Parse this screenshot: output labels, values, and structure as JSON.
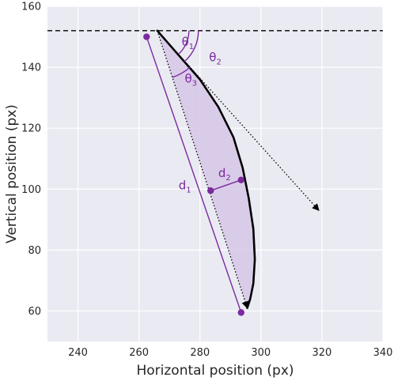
{
  "chart_data": {
    "type": "line",
    "xlabel": "Horizontal position (px)",
    "ylabel": "Vertical position (px)",
    "xlim": [
      230,
      340
    ],
    "ylim": [
      50,
      160
    ],
    "xticks": [
      240,
      260,
      280,
      300,
      320,
      340
    ],
    "yticks": [
      60,
      80,
      100,
      120,
      140,
      160
    ],
    "grid": true,
    "colors": {
      "background": "#eaeaf2",
      "grid": "#ffffff",
      "accent": "#7b2aa0",
      "trajectory": "#000000",
      "fill": "#d6c7e6"
    },
    "series": [
      {
        "style": "solid-black",
        "x": [
          266,
          273,
          280,
          286,
          291,
          294,
          296,
          297.5,
          298,
          297.5,
          296.5,
          295.5
        ],
        "y": [
          152,
          144,
          136,
          127,
          117,
          107,
          97,
          87,
          77,
          69,
          64,
          61
        ]
      },
      {
        "style": "dashed-horizontal",
        "x": [
          230,
          340
        ],
        "y": [
          152,
          152
        ]
      },
      {
        "style": "dotted-arrow",
        "x": [
          266,
          319
        ],
        "y": [
          152,
          93
        ]
      },
      {
        "style": "dotted-arrow",
        "x": [
          266,
          295.5
        ],
        "y": [
          152,
          61
        ]
      }
    ],
    "markers": [
      {
        "x": 262.5,
        "y": 150
      },
      {
        "x": 293.5,
        "y": 59.5
      },
      {
        "x": 283.5,
        "y": 99.5
      },
      {
        "x": 293.5,
        "y": 103
      }
    ],
    "annotations": [
      {
        "base": "θ",
        "sub": "1",
        "x": 274,
        "y": 147
      },
      {
        "base": "θ",
        "sub": "2",
        "x": 283,
        "y": 142
      },
      {
        "base": "θ",
        "sub": "3",
        "x": 275,
        "y": 135
      },
      {
        "base": "d",
        "sub": "2",
        "x": 286,
        "y": 104
      },
      {
        "base": "d",
        "sub": "1",
        "x": 273,
        "y": 100
      }
    ]
  }
}
